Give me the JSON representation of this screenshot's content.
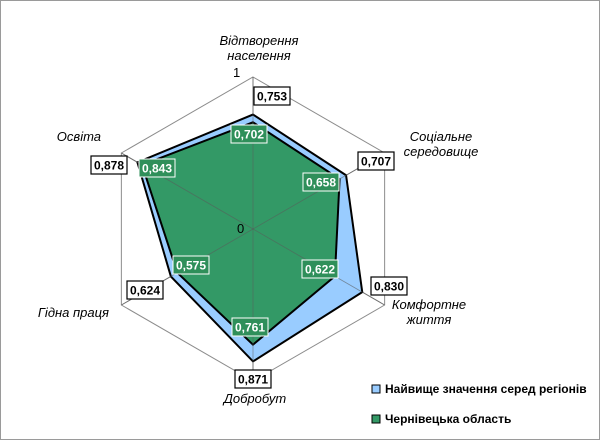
{
  "chart_data": {
    "type": "radar",
    "axes": [
      "Відтворення|населення",
      "Соціальне|середовище",
      "Комфортне|життя",
      "Добробут",
      "Гідна праця",
      "Освіта"
    ],
    "rlim": [
      0,
      1
    ],
    "tick_labels": [
      "0",
      "1"
    ],
    "grid": true,
    "legend_position": "bottom-right",
    "series": [
      {
        "name": "Найвище значення серед регіонів",
        "values": [
          0.753,
          0.707,
          0.83,
          0.871,
          0.624,
          0.878
        ],
        "labels": [
          "0,753",
          "0,707",
          "0,830",
          "0,871",
          "0,624",
          "0,878"
        ],
        "color": "#99ccff"
      },
      {
        "name": "Чернівецька область",
        "values": [
          0.702,
          0.658,
          0.622,
          0.761,
          0.575,
          0.843
        ],
        "labels": [
          "0,702",
          "0,658",
          "0,622",
          "0,761",
          "0,575",
          "0,843"
        ],
        "color": "#339966"
      }
    ]
  }
}
